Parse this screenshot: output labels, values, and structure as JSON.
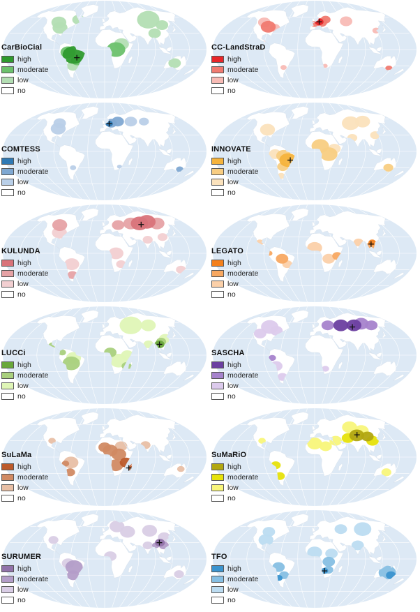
{
  "legend_levels": [
    "high",
    "moderate",
    "low",
    "no"
  ],
  "panels": [
    {
      "title": "CarBioCial",
      "colors": [
        "#2e9a2e",
        "#6cc16c",
        "#b3deb3",
        "#ffffff"
      ],
      "focus": "Brazil"
    },
    {
      "title": "CC-LandStraD",
      "colors": [
        "#e8262a",
        "#f07a70",
        "#f8bbb5",
        "#ffffff"
      ],
      "focus": "Germany"
    },
    {
      "title": "COMTESS",
      "colors": [
        "#2f79b4",
        "#7fa8d2",
        "#b9cfe8",
        "#ffffff"
      ],
      "focus": "Germany"
    },
    {
      "title": "INNOVATE",
      "colors": [
        "#f5b33c",
        "#f8cd82",
        "#fbe2bc",
        "#ffffff"
      ],
      "focus": "Brazil"
    },
    {
      "title": "KULUNDA",
      "colors": [
        "#d9737a",
        "#e6a2a5",
        "#f2cfd1",
        "#ffffff"
      ],
      "focus": "Siberia"
    },
    {
      "title": "LEGATO",
      "colors": [
        "#f4801c",
        "#f8a861",
        "#fbd0a9",
        "#ffffff"
      ],
      "focus": "Southeast Asia"
    },
    {
      "title": "LUCCi",
      "colors": [
        "#69a83a",
        "#a9d07d",
        "#dff5b6",
        "#ffffff"
      ],
      "focus": "Southeast Asia"
    },
    {
      "title": "SASCHA",
      "colors": [
        "#6b3fa0",
        "#a683cc",
        "#dccaec",
        "#ffffff"
      ],
      "focus": "Siberia"
    },
    {
      "title": "SuLaMa",
      "colors": [
        "#bc5a2b",
        "#d18a63",
        "#e8bfa5",
        "#ffffff"
      ],
      "focus": "Madagascar"
    },
    {
      "title": "SuMaRiO",
      "colors": [
        "#b2a710",
        "#e6e20a",
        "#f8f57a",
        "#ffffff"
      ],
      "focus": "China"
    },
    {
      "title": "SURUMER",
      "colors": [
        "#9273aa",
        "#b39dc8",
        "#d9cde5",
        "#ffffff"
      ],
      "focus": "China"
    },
    {
      "title": "TFO",
      "colors": [
        "#3b94cf",
        "#86bfe3",
        "#bcdcf1",
        "#ffffff"
      ],
      "focus": "Namibia"
    }
  ],
  "map_colors": {
    "ocean": "#dde9f5",
    "graticule": "#ffffff",
    "land_default": "#ffffff",
    "marker": "#111111"
  }
}
